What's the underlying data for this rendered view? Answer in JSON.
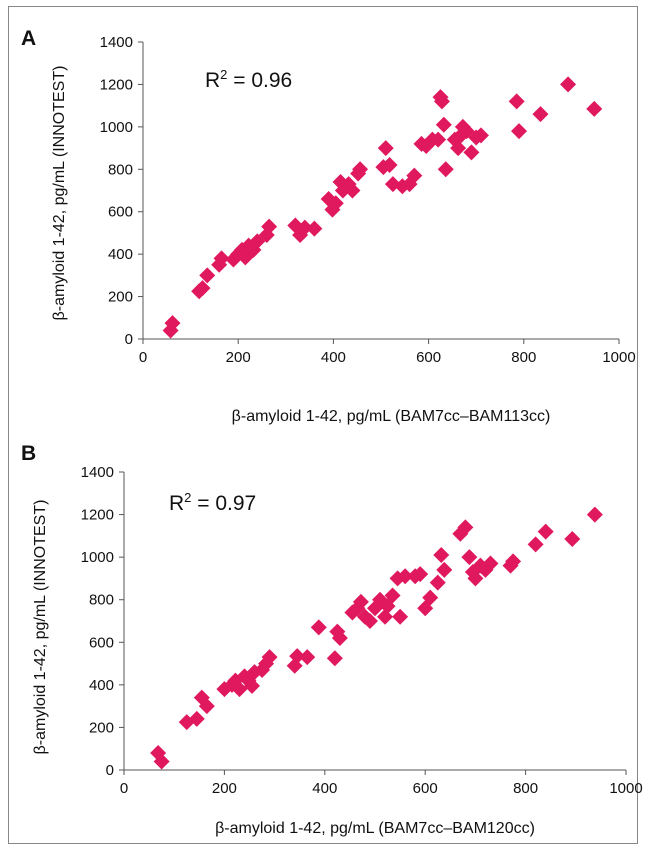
{
  "marker_color": "#e0185e",
  "chart_data": [
    {
      "type": "scatter",
      "panel_label": "A",
      "annotation_prefix": "R",
      "annotation_sup": "2",
      "annotation_value": " = 0.96",
      "xlabel": "β-amyloid 1-42, pg/mL (BAM7cc–BAM113cc)",
      "ylabel": "β-amyloid 1-42, pg/mL (INNOTEST)",
      "xlim": [
        0,
        1000
      ],
      "ylim": [
        0,
        1400
      ],
      "x_ticks": [
        "0",
        "200",
        "400",
        "600",
        "800",
        "1000"
      ],
      "y_ticks": [
        "0",
        "200",
        "400",
        "600",
        "800",
        "1000",
        "1200",
        "1400"
      ],
      "grid": false,
      "points": [
        [
          58,
          40
        ],
        [
          62,
          75
        ],
        [
          118,
          225
        ],
        [
          125,
          240
        ],
        [
          135,
          300
        ],
        [
          160,
          350
        ],
        [
          165,
          380
        ],
        [
          190,
          375
        ],
        [
          200,
          400
        ],
        [
          208,
          420
        ],
        [
          215,
          385
        ],
        [
          222,
          440
        ],
        [
          232,
          420
        ],
        [
          240,
          460
        ],
        [
          260,
          490
        ],
        [
          265,
          530
        ],
        [
          320,
          535
        ],
        [
          330,
          490
        ],
        [
          340,
          525
        ],
        [
          360,
          520
        ],
        [
          390,
          660
        ],
        [
          398,
          610
        ],
        [
          405,
          640
        ],
        [
          415,
          740
        ],
        [
          420,
          700
        ],
        [
          432,
          730
        ],
        [
          440,
          700
        ],
        [
          452,
          780
        ],
        [
          456,
          800
        ],
        [
          505,
          810
        ],
        [
          510,
          900
        ],
        [
          518,
          820
        ],
        [
          525,
          730
        ],
        [
          545,
          720
        ],
        [
          560,
          730
        ],
        [
          570,
          770
        ],
        [
          585,
          920
        ],
        [
          595,
          910
        ],
        [
          608,
          940
        ],
        [
          620,
          940
        ],
        [
          625,
          1140
        ],
        [
          628,
          1120
        ],
        [
          632,
          1010
        ],
        [
          636,
          800
        ],
        [
          655,
          940
        ],
        [
          662,
          900
        ],
        [
          668,
          960
        ],
        [
          672,
          1000
        ],
        [
          680,
          980
        ],
        [
          690,
          880
        ],
        [
          700,
          950
        ],
        [
          710,
          960
        ],
        [
          785,
          1120
        ],
        [
          790,
          980
        ],
        [
          835,
          1060
        ],
        [
          893,
          1200
        ],
        [
          948,
          1085
        ]
      ]
    },
    {
      "type": "scatter",
      "panel_label": "B",
      "annotation_prefix": "R",
      "annotation_sup": "2",
      "annotation_value": " = 0.97",
      "xlabel": "β-amyloid 1-42, pg/mL (BAM7cc–BAM120cc)",
      "ylabel": "β-amyloid 1-42, pg/mL (INNOTEST)",
      "xlim": [
        0,
        1000
      ],
      "ylim": [
        0,
        1400
      ],
      "x_ticks": [
        "0",
        "200",
        "400",
        "600",
        "800",
        "1000"
      ],
      "y_ticks": [
        "0",
        "200",
        "400",
        "600",
        "800",
        "1000",
        "1200",
        "1400"
      ],
      "grid": false,
      "points": [
        [
          68,
          80
        ],
        [
          75,
          40
        ],
        [
          125,
          225
        ],
        [
          145,
          240
        ],
        [
          155,
          340
        ],
        [
          165,
          300
        ],
        [
          200,
          380
        ],
        [
          215,
          400
        ],
        [
          222,
          420
        ],
        [
          230,
          380
        ],
        [
          240,
          440
        ],
        [
          248,
          420
        ],
        [
          255,
          395
        ],
        [
          260,
          460
        ],
        [
          275,
          470
        ],
        [
          283,
          500
        ],
        [
          290,
          530
        ],
        [
          340,
          490
        ],
        [
          345,
          535
        ],
        [
          365,
          530
        ],
        [
          388,
          670
        ],
        [
          420,
          525
        ],
        [
          425,
          650
        ],
        [
          430,
          620
        ],
        [
          455,
          740
        ],
        [
          465,
          760
        ],
        [
          472,
          790
        ],
        [
          480,
          720
        ],
        [
          490,
          700
        ],
        [
          500,
          760
        ],
        [
          510,
          800
        ],
        [
          520,
          720
        ],
        [
          525,
          770
        ],
        [
          535,
          820
        ],
        [
          545,
          900
        ],
        [
          550,
          720
        ],
        [
          560,
          910
        ],
        [
          580,
          910
        ],
        [
          590,
          920
        ],
        [
          600,
          760
        ],
        [
          610,
          810
        ],
        [
          625,
          880
        ],
        [
          632,
          1010
        ],
        [
          638,
          940
        ],
        [
          670,
          1110
        ],
        [
          680,
          1140
        ],
        [
          688,
          1000
        ],
        [
          695,
          930
        ],
        [
          700,
          900
        ],
        [
          710,
          960
        ],
        [
          720,
          940
        ],
        [
          730,
          970
        ],
        [
          770,
          960
        ],
        [
          775,
          980
        ],
        [
          820,
          1060
        ],
        [
          840,
          1120
        ],
        [
          893,
          1085
        ],
        [
          938,
          1200
        ]
      ]
    }
  ]
}
